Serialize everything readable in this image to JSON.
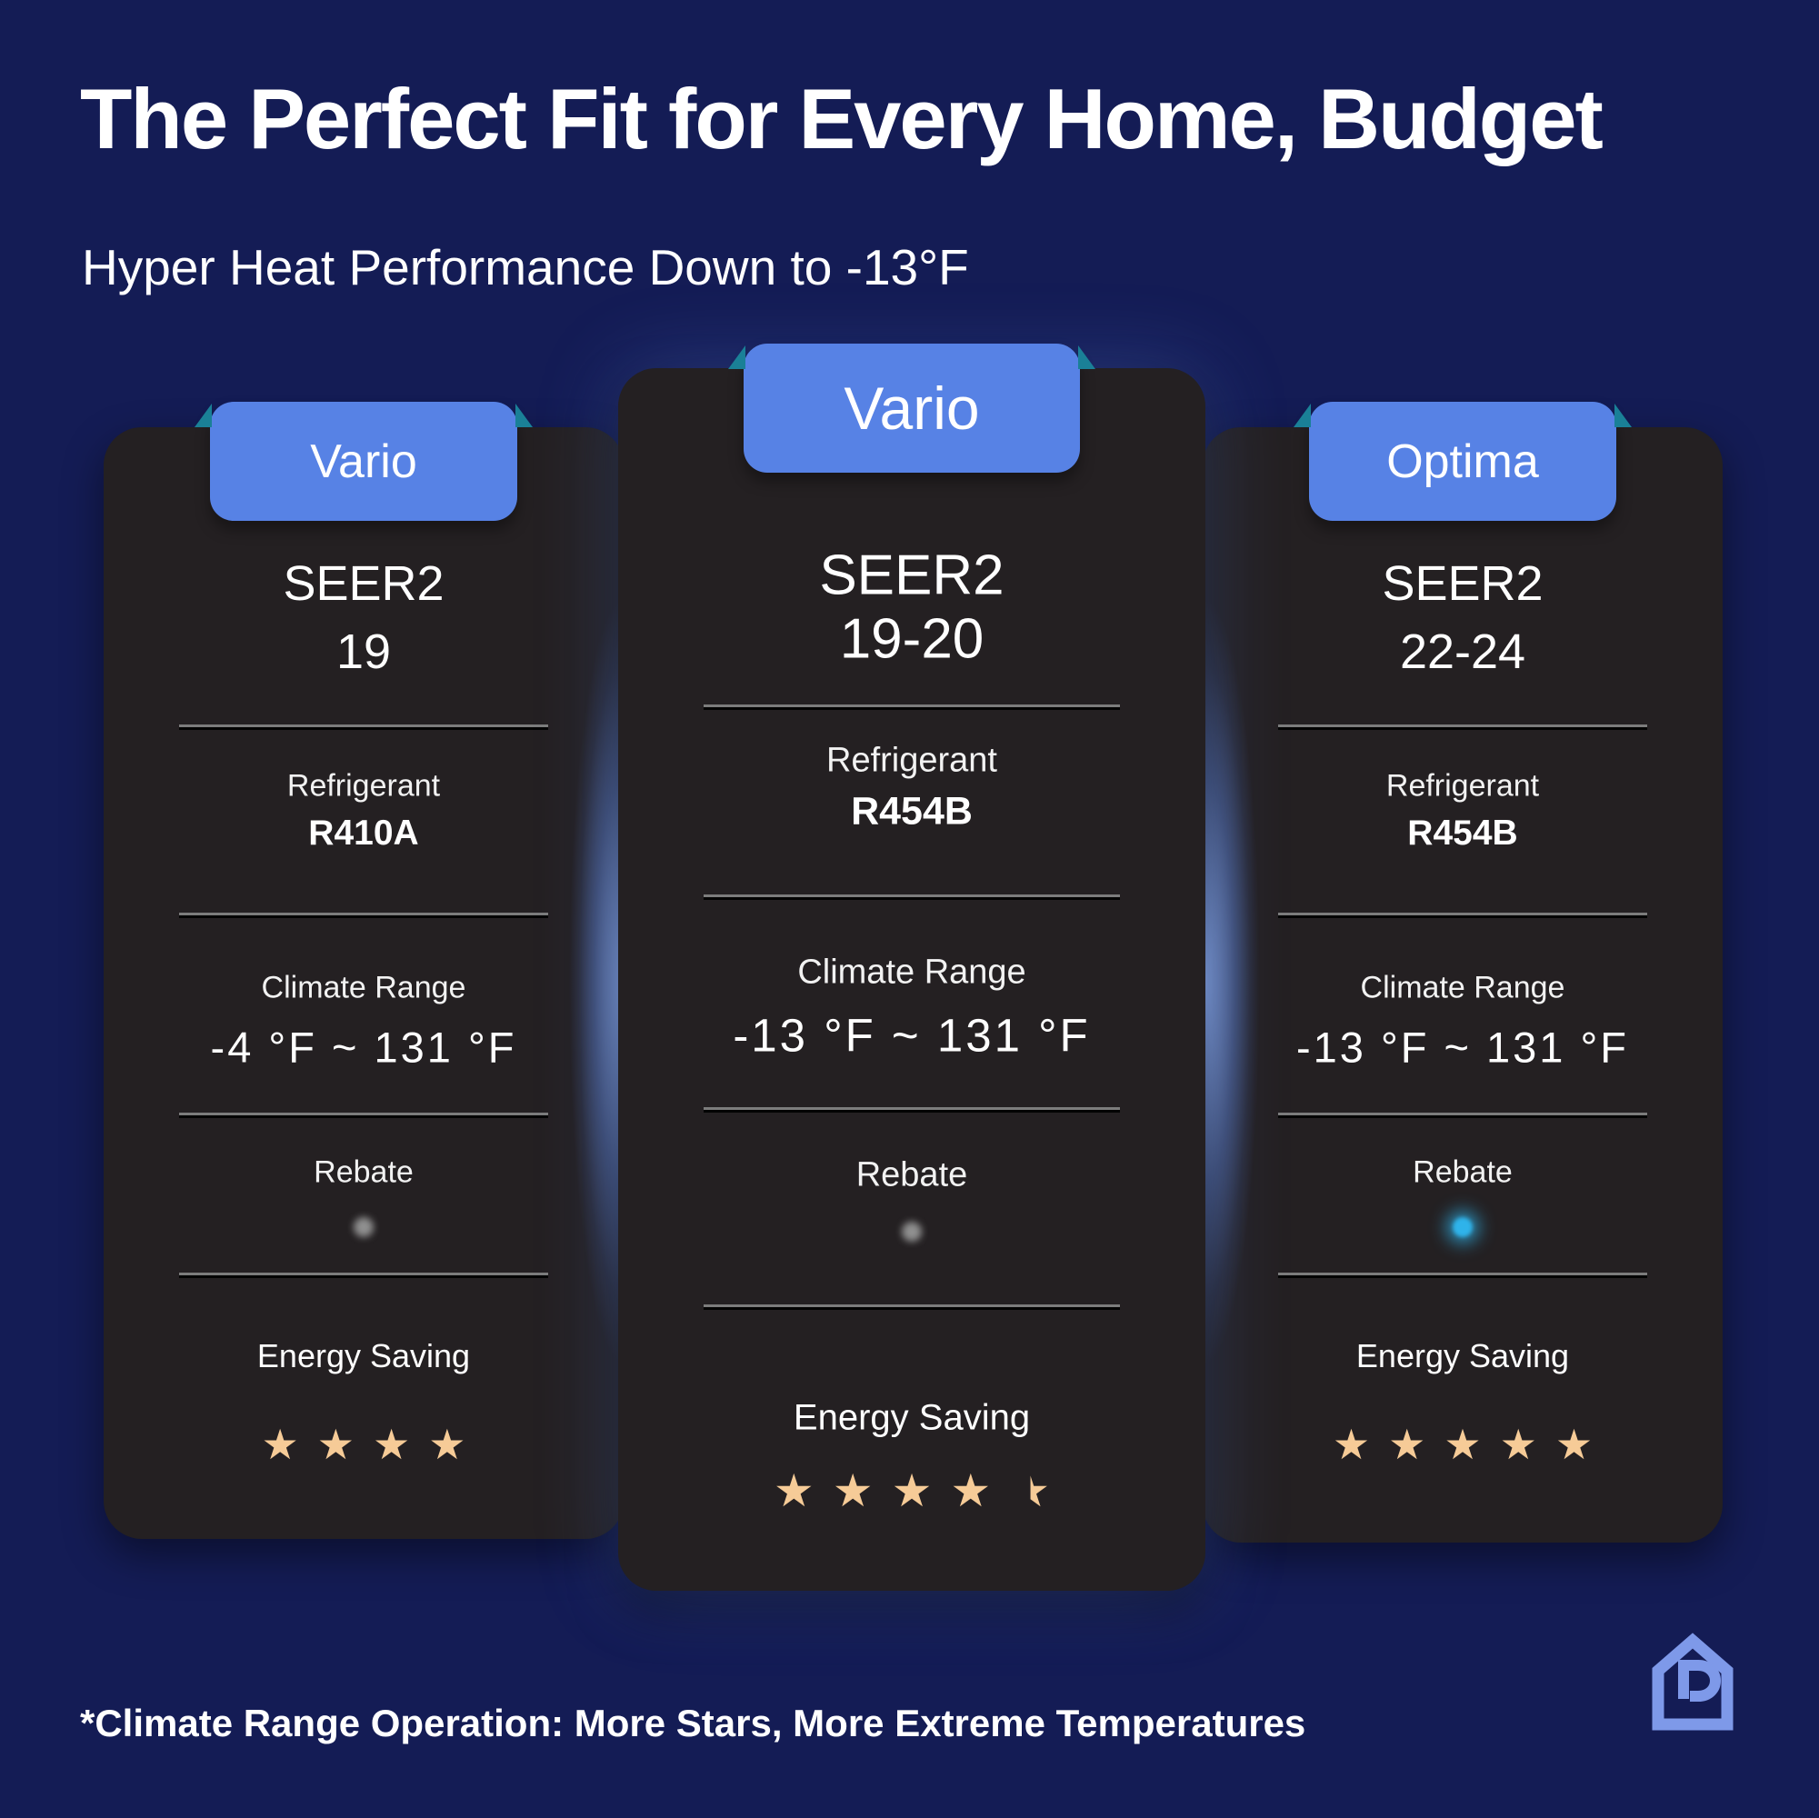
{
  "page": {
    "title": "The Perfect Fit for Every Home, Budget",
    "subtitle": "Hyper Heat Performance Down to -13°F",
    "footnote": "*Climate Range Operation: More Stars, More Extreme Temperatures"
  },
  "colors": {
    "background": "#141c55",
    "card": "#242022",
    "tag_blue": "#5782e5",
    "ribbon_teal": "#1a8097",
    "star_gold": "#f6cb97",
    "rebate_dot_blue": "#2fb3ea",
    "rebate_dot_gray": "#909090",
    "logo_blue": "#7e99e9"
  },
  "cards": [
    {
      "tag": "Vario",
      "seer_label": "SEER2",
      "seer_value": "19",
      "refrigerant_label": "Refrigerant",
      "refrigerant_value": "R410A",
      "climate_label": "Climate Range",
      "climate_value": "-4 °F ~ 131 °F",
      "rebate_label": "Rebate",
      "rebate_dot": "gray",
      "energy_label": "Energy Saving",
      "stars": 4
    },
    {
      "tag": "Vario",
      "seer_label": "SEER2",
      "seer_value": "19-20",
      "refrigerant_label": "Refrigerant",
      "refrigerant_value": "R454B",
      "climate_label": "Climate Range",
      "climate_value": "-13 °F ~ 131 °F",
      "rebate_label": "Rebate",
      "rebate_dot": "gray",
      "energy_label": "Energy Saving",
      "stars": 4.5
    },
    {
      "tag": "Optima",
      "seer_label": "SEER2",
      "seer_value": "22-24",
      "refrigerant_label": "Refrigerant",
      "refrigerant_value": "R454B",
      "climate_label": "Climate Range",
      "climate_value": "-13 °F ~ 131 °F",
      "rebate_label": "Rebate",
      "rebate_dot": "blue",
      "energy_label": "Energy Saving",
      "stars": 5
    }
  ]
}
